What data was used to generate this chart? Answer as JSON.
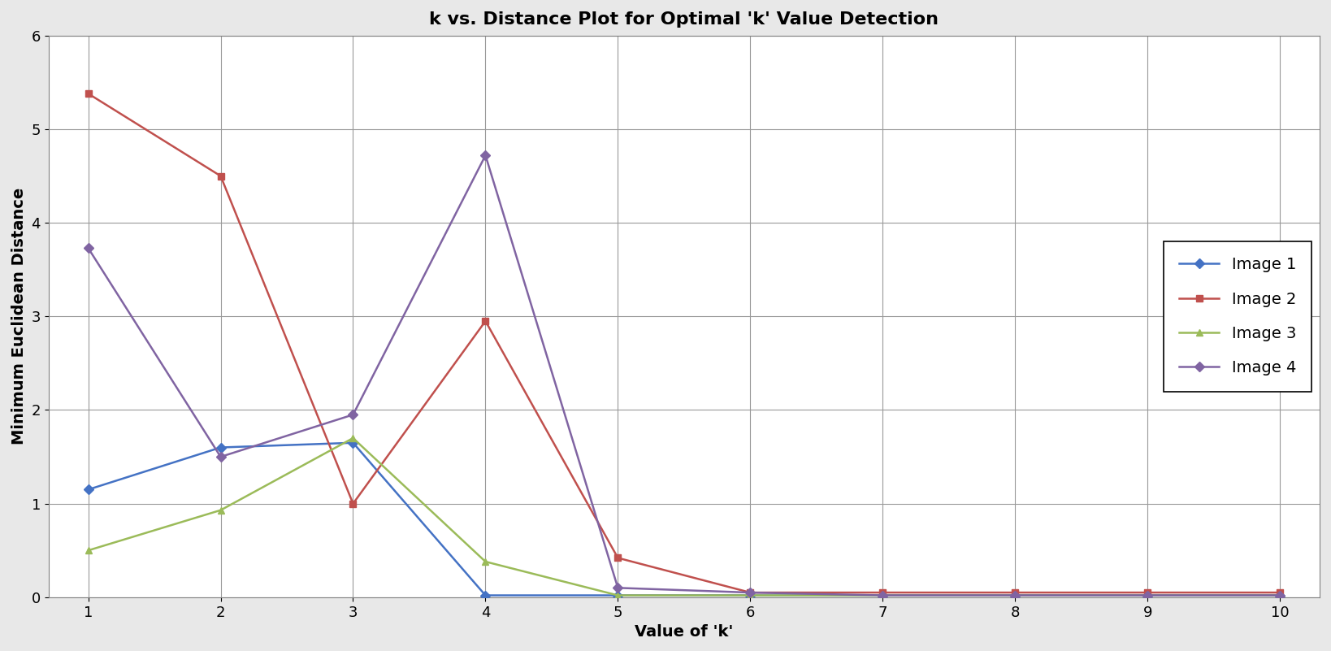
{
  "title": "k vs. Distance Plot for Optimal 'k' Value Detection",
  "xlabel": "Value of 'k'",
  "ylabel": "Minimum Euclidean Distance",
  "x": [
    1,
    2,
    3,
    4,
    5,
    6,
    7,
    8,
    9,
    10
  ],
  "image1": [
    1.15,
    1.6,
    1.65,
    0.02,
    0.02,
    0.02,
    0.02,
    0.02,
    0.02,
    0.02
  ],
  "image2": [
    5.38,
    4.5,
    1.0,
    2.95,
    0.42,
    0.05,
    0.05,
    0.05,
    0.05,
    0.05
  ],
  "image3": [
    0.5,
    0.93,
    1.7,
    0.38,
    0.02,
    0.02,
    0.02,
    0.02,
    0.02,
    0.02
  ],
  "image4": [
    3.73,
    1.5,
    1.95,
    4.72,
    0.1,
    0.05,
    0.02,
    0.02,
    0.02,
    0.02
  ],
  "color1": "#4472C4",
  "color2": "#C0504D",
  "color3": "#9BBB59",
  "color4": "#8064A2",
  "ylim": [
    0,
    6
  ],
  "xlim": [
    1,
    10
  ],
  "yticks": [
    0,
    1,
    2,
    3,
    4,
    5,
    6
  ],
  "xticks": [
    1,
    2,
    3,
    4,
    5,
    6,
    7,
    8,
    9,
    10
  ],
  "legend_labels": [
    "Image 1",
    "Image 2",
    "Image 3",
    "Image 4"
  ],
  "title_fontsize": 16,
  "axis_label_fontsize": 14,
  "tick_fontsize": 13,
  "legend_fontsize": 14,
  "background_color": "#FFFFFF",
  "outer_background": "#E8E8E8",
  "grid_color": "#999999",
  "spine_color": "#808080"
}
